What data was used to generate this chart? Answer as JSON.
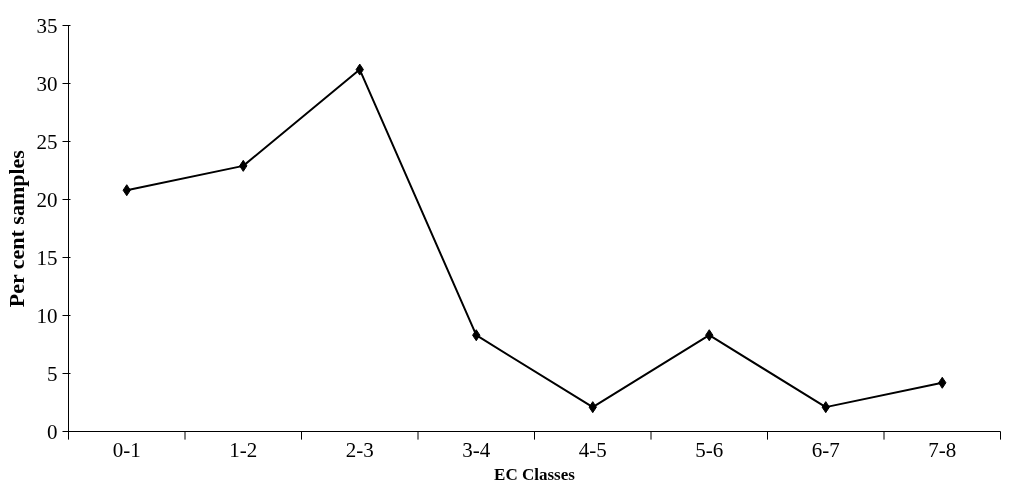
{
  "chart_data": {
    "type": "line",
    "xlabel": "EC Classes",
    "ylabel": "Per cent samples",
    "categories": [
      "0-1",
      "1-2",
      "2-3",
      "3-4",
      "4-5",
      "5-6",
      "6-7",
      "7-8"
    ],
    "series": [
      {
        "color": "#000000",
        "values": [
          20.8,
          22.9,
          31.2,
          8.3,
          2.1,
          8.3,
          2.1,
          4.2
        ]
      }
    ],
    "ylim": [
      0,
      35
    ],
    "yticks": [
      0,
      5,
      10,
      15,
      20,
      25,
      30,
      35
    ],
    "grid": false,
    "marker": "diamond",
    "line_style": "solid"
  }
}
